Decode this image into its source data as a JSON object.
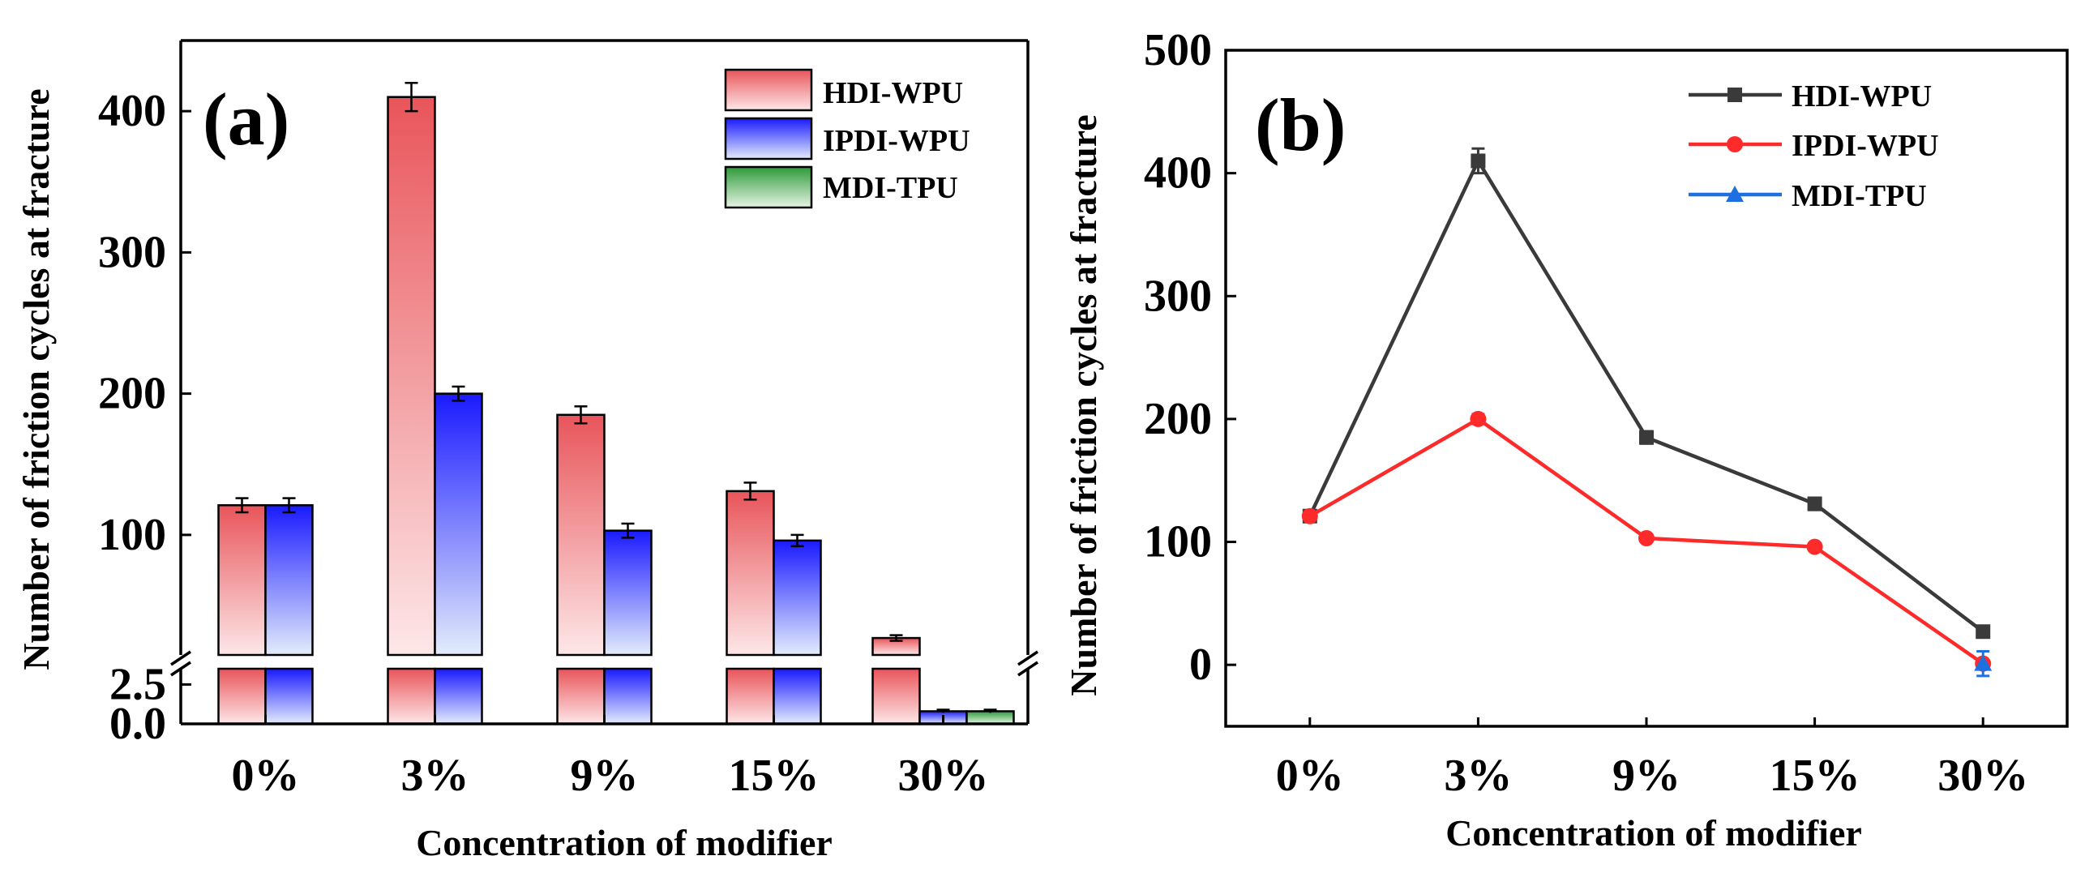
{
  "chart_data": [
    {
      "type": "bar",
      "panel_label": "(a)",
      "categories": [
        "0%",
        "3%",
        "9%",
        "15%",
        "30%"
      ],
      "series": [
        {
          "name": "HDI-WPU",
          "values": [
            121,
            410,
            185,
            131,
            27
          ],
          "errors": [
            5,
            10,
            6,
            6,
            2
          ],
          "color": "#e8555a"
        },
        {
          "name": "IPDI-WPU",
          "values": [
            121,
            200,
            103,
            96,
            0.8
          ],
          "errors": [
            5,
            5,
            5,
            4,
            0.1
          ],
          "color": "#1a1aff"
        },
        {
          "name": "MDI-TPU",
          "values": [
            null,
            null,
            null,
            null,
            0.8
          ],
          "errors": [
            null,
            null,
            null,
            null,
            0.1
          ],
          "color": "#2e9a3a"
        }
      ],
      "xlabel": "Concentration of modifier",
      "ylabel": "Number of friction cycles at fracture",
      "y_break": true,
      "lower_ylim": [
        0,
        3.5
      ],
      "lower_ticks": [
        "0.0",
        "2.5"
      ],
      "upper_ylim": [
        15,
        450
      ],
      "upper_ticks": [
        "100",
        "200",
        "300",
        "400"
      ],
      "legend": "top-right"
    },
    {
      "type": "line",
      "panel_label": "(b)",
      "categories": [
        "0%",
        "3%",
        "9%",
        "15%",
        "30%"
      ],
      "series": [
        {
          "name": "HDI-WPU",
          "values": [
            121,
            410,
            185,
            131,
            27
          ],
          "errors": [
            4,
            10,
            5,
            5,
            3
          ],
          "color": "#3a3a3a",
          "marker": "square"
        },
        {
          "name": "IPDI-WPU",
          "values": [
            121,
            200,
            103,
            96,
            1
          ],
          "errors": [
            3,
            4,
            3,
            3,
            2
          ],
          "color": "#ff2a2a",
          "marker": "circle"
        },
        {
          "name": "MDI-TPU",
          "values": [
            null,
            null,
            null,
            null,
            1
          ],
          "errors": [
            null,
            null,
            null,
            null,
            10
          ],
          "color": "#1e6fe0",
          "marker": "triangle"
        }
      ],
      "xlabel": "Concentration of modifier",
      "ylabel": "Number of friction cycles at fracture",
      "ylim": [
        -50,
        500
      ],
      "yticks": [
        0,
        100,
        200,
        300,
        400,
        500
      ],
      "legend": "top-right"
    }
  ]
}
